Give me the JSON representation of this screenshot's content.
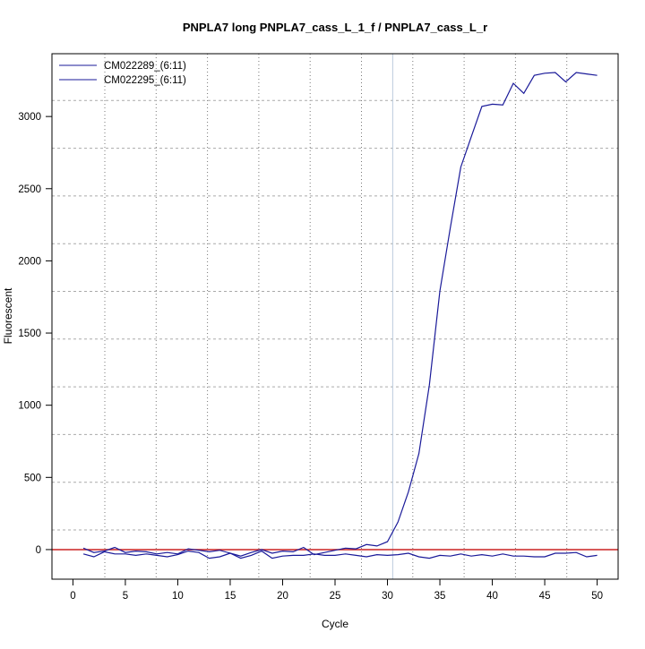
{
  "chart_data": {
    "type": "line",
    "title": "PNPLA7 long PNPLA7_cass_L_1_f / PNPLA7_cass_L_r",
    "xlabel": "Cycle",
    "ylabel": "Fluorescent",
    "xlim": [
      -2,
      52
    ],
    "ylim": [
      -205,
      3435
    ],
    "xticks": [
      0,
      5,
      10,
      15,
      20,
      25,
      30,
      35,
      40,
      45,
      50
    ],
    "yticks": [
      0,
      500,
      1000,
      1500,
      2000,
      2500,
      3000
    ],
    "grid": true,
    "legend_position": "top-left",
    "threshold": {
      "y": 0,
      "color": "#cc2222"
    },
    "cutoff_cycle": 30.5,
    "cutoff_color": "#99eeff",
    "line_color": "#1a1a99",
    "x": [
      1,
      2,
      3,
      4,
      5,
      6,
      7,
      8,
      9,
      10,
      11,
      12,
      13,
      14,
      15,
      16,
      17,
      18,
      19,
      20,
      21,
      22,
      23,
      24,
      25,
      26,
      27,
      28,
      29,
      30,
      31,
      32,
      33,
      34,
      35,
      36,
      37,
      38,
      39,
      40,
      41,
      42,
      43,
      44,
      45,
      46,
      47,
      48,
      49,
      50
    ],
    "series": [
      {
        "name": "CM022289_(6:11)",
        "values": [
          10,
          -20,
          -10,
          15,
          -20,
          -10,
          -15,
          -30,
          -20,
          -30,
          5,
          -5,
          -15,
          -5,
          -25,
          -45,
          -20,
          0,
          -25,
          -10,
          -15,
          15,
          -35,
          -20,
          -5,
          10,
          5,
          35,
          25,
          55,
          190,
          400,
          665,
          1140,
          1790,
          2230,
          2650,
          2860,
          3070,
          3085,
          3080,
          3230,
          3160,
          3285,
          3300,
          3305,
          3240,
          3305,
          3295,
          3285
        ]
      },
      {
        "name": "CM022295_(6:11)",
        "values": [
          -30,
          -50,
          -15,
          -30,
          -30,
          -40,
          -30,
          -40,
          -50,
          -35,
          -10,
          -20,
          -60,
          -50,
          -25,
          -60,
          -40,
          -10,
          -60,
          -45,
          -40,
          -40,
          -30,
          -40,
          -40,
          -30,
          -40,
          -50,
          -35,
          -40,
          -35,
          -25,
          -50,
          -60,
          -40,
          -45,
          -30,
          -45,
          -35,
          -45,
          -30,
          -45,
          -45,
          -50,
          -50,
          -25,
          -25,
          -20,
          -50,
          -40
        ]
      }
    ]
  }
}
